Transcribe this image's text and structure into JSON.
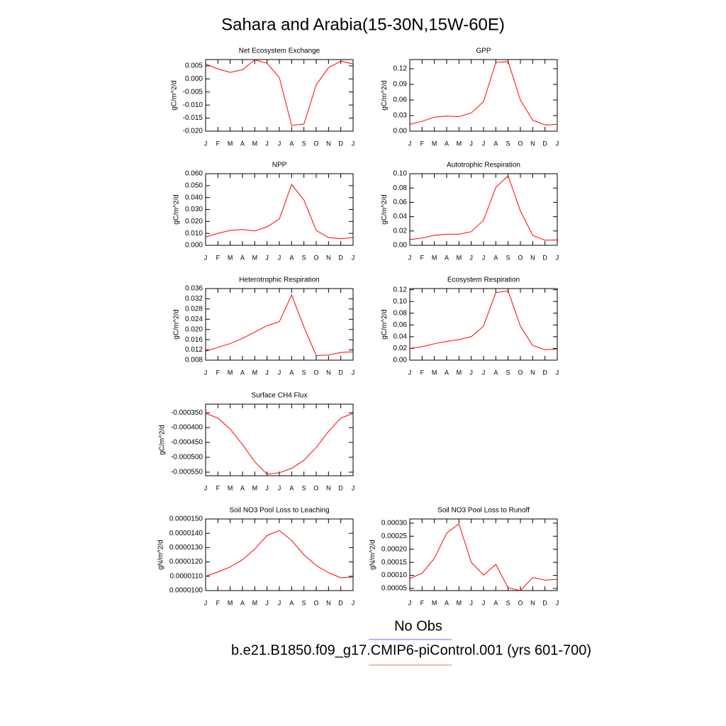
{
  "title": "Sahara and Arabia(15-30N,15W-60E)",
  "legend": [
    {
      "name": "No Obs",
      "color": "#6a6aff"
    },
    {
      "name": "b.e21.B1850.f09_g17.CMIP6-piControl.001 (yrs 601-700)",
      "color": "#ff6a6a"
    }
  ],
  "chart_data": [
    {
      "type": "line",
      "title": "Net Ecosystem Exchange",
      "y_label": "gC/m^2/d",
      "color": "#ff0000",
      "categories": [
        "J",
        "F",
        "M",
        "A",
        "M",
        "J",
        "J",
        "A",
        "S",
        "O",
        "N",
        "D",
        "J"
      ],
      "values": [
        0.0057,
        0.0038,
        0.0025,
        0.0035,
        0.0073,
        0.006,
        0.0005,
        -0.0178,
        -0.0173,
        -0.0023,
        0.0043,
        0.0068,
        0.0057
      ],
      "ylim": [
        -0.02,
        0.0074
      ],
      "yticks": [
        0.005,
        {
          "value": 0,
          "label": "0.000"
        },
        -0.005,
        {
          "value": -0.01,
          "label": "-0.010"
        },
        -0.015,
        {
          "value": -0.02,
          "label": "-0.020"
        }
      ]
    },
    {
      "type": "line",
      "title": "GPP",
      "y_label": "gC/m^2/d",
      "color": "#ff0000",
      "categories": [
        "J",
        "F",
        "M",
        "A",
        "M",
        "J",
        "J",
        "A",
        "S",
        "O",
        "N",
        "D",
        "J"
      ],
      "values": [
        0.013,
        0.019,
        0.027,
        0.029,
        0.028,
        0.035,
        0.057,
        0.132,
        0.134,
        0.06,
        0.021,
        0.012,
        0.013
      ],
      "ylim": [
        0,
        0.1377
      ],
      "yticks": [
        {
          "value": 0,
          "label": "0.00"
        },
        0.03,
        0.06,
        0.09,
        0.12
      ]
    },
    {
      "type": "line",
      "title": "NPP",
      "y_label": "gC/m^2/d",
      "color": "#ff0000",
      "categories": [
        "J",
        "F",
        "M",
        "A",
        "M",
        "J",
        "J",
        "A",
        "S",
        "O",
        "N",
        "D",
        "J"
      ],
      "values": [
        0.007,
        0.01,
        0.0125,
        0.0133,
        0.012,
        0.0155,
        0.022,
        0.051,
        0.038,
        0.0125,
        0.0065,
        0.0055,
        0.0065
      ],
      "ylim": [
        0,
        0.06
      ],
      "yticks": [
        {
          "value": 0,
          "label": "0.000"
        },
        {
          "value": 0.01,
          "label": "0.010"
        },
        {
          "value": 0.02,
          "label": "0.020"
        },
        {
          "value": 0.03,
          "label": "0.030"
        },
        {
          "value": 0.04,
          "label": "0.040"
        },
        {
          "value": 0.05,
          "label": "0.050"
        },
        {
          "value": 0.06,
          "label": "0.060"
        }
      ]
    },
    {
      "type": "line",
      "title": "Autotrophic Respiration",
      "y_label": "gC/m^2/d",
      "color": "#ff0000",
      "categories": [
        "J",
        "F",
        "M",
        "A",
        "M",
        "J",
        "J",
        "A",
        "S",
        "O",
        "N",
        "D",
        "J"
      ],
      "values": [
        0.008,
        0.01,
        0.014,
        0.0155,
        0.0155,
        0.019,
        0.035,
        0.081,
        0.097,
        0.048,
        0.014,
        0.007,
        0.0075
      ],
      "ylim": [
        0,
        0.1
      ],
      "yticks": [
        {
          "value": 0,
          "label": "0.00"
        },
        0.02,
        0.04,
        0.06,
        0.08,
        {
          "value": 0.1,
          "label": "0.10"
        }
      ]
    },
    {
      "type": "line",
      "title": "Heterotrophic Respiration",
      "y_label": "gC/m^2/d",
      "color": "#ff0000",
      "categories": [
        "J",
        "F",
        "M",
        "A",
        "M",
        "J",
        "J",
        "A",
        "S",
        "O",
        "N",
        "D",
        "J"
      ],
      "values": [
        0.0115,
        0.013,
        0.0145,
        0.0165,
        0.019,
        0.0215,
        0.023,
        0.0335,
        0.021,
        0.0098,
        0.01,
        0.011,
        0.0113
      ],
      "ylim": [
        0.008,
        0.036
      ],
      "yticks": [
        0.008,
        0.012,
        0.016,
        {
          "value": 0.02,
          "label": "0.020"
        },
        0.024,
        0.028,
        0.032,
        0.036
      ]
    },
    {
      "type": "line",
      "title": "Ecosystem Respiration",
      "y_label": "gC/m^2/d",
      "color": "#ff0000",
      "categories": [
        "J",
        "F",
        "M",
        "A",
        "M",
        "J",
        "J",
        "A",
        "S",
        "O",
        "N",
        "D",
        "J"
      ],
      "values": [
        0.02,
        0.023,
        0.028,
        0.032,
        0.035,
        0.04,
        0.058,
        0.115,
        0.118,
        0.058,
        0.025,
        0.018,
        0.019
      ],
      "ylim": [
        0,
        0.122
      ],
      "yticks": [
        {
          "value": 0,
          "label": "0.00"
        },
        0.02,
        0.04,
        0.06,
        0.08,
        {
          "value": 0.1,
          "label": "0.10"
        },
        0.12
      ]
    },
    {
      "type": "line",
      "title": "Surface CH4 Flux",
      "y_label": "gC/m^2/d",
      "color": "#ff0000",
      "categories": [
        "J",
        "F",
        "M",
        "A",
        "M",
        "J",
        "J",
        "A",
        "S",
        "O",
        "N",
        "D",
        "J"
      ],
      "values": [
        -0.000352,
        -0.000368,
        -0.000405,
        -0.000457,
        -0.000515,
        -0.000557,
        -0.000552,
        -0.000537,
        -0.00051,
        -0.000467,
        -0.000413,
        -0.000368,
        -0.000352
      ],
      "ylim": [
        -0.000562,
        -0.000321
      ],
      "yticks": [
        {
          "value": -0.00035,
          "label": "-0.000350"
        },
        {
          "value": -0.0004,
          "label": "-0.000400"
        },
        {
          "value": -0.00045,
          "label": "-0.000450"
        },
        {
          "value": -0.0005,
          "label": "-0.000500"
        },
        {
          "value": -0.00055,
          "label": "-0.000550"
        }
      ]
    },
    {
      "type": "line",
      "title": "Soil NO3 Pool Loss to Leaching",
      "y_label": "gN/m^2/d",
      "color": "#ff0000",
      "categories": [
        "J",
        "F",
        "M",
        "A",
        "M",
        "J",
        "J",
        "A",
        "S",
        "O",
        "N",
        "D",
        "J"
      ],
      "values": [
        1.1e-05,
        1.13e-05,
        1.165e-05,
        1.215e-05,
        1.29e-05,
        1.385e-05,
        1.42e-05,
        1.35e-05,
        1.25e-05,
        1.175e-05,
        1.125e-05,
        1.09e-05,
        1.095e-05
      ],
      "ylim": [
        1e-05,
        1.5e-05
      ],
      "yticks": [
        {
          "value": 1e-05,
          "label": "0.0000100"
        },
        {
          "value": 1.1e-05,
          "label": "0.0000110"
        },
        {
          "value": 1.2e-05,
          "label": "0.0000120"
        },
        {
          "value": 1.3e-05,
          "label": "0.0000130"
        },
        {
          "value": 1.4e-05,
          "label": "0.0000140"
        },
        {
          "value": 1.5e-05,
          "label": "0.0000150"
        }
      ]
    },
    {
      "type": "line",
      "title": "Soil NO3 Pool Loss to Runoff",
      "y_label": "gN/m^2/d",
      "color": "#ff0000",
      "categories": [
        "J",
        "F",
        "M",
        "A",
        "M",
        "J",
        "J",
        "A",
        "S",
        "O",
        "N",
        "D",
        "J"
      ],
      "values": [
        8.8e-05,
        0.000108,
        0.000165,
        0.000262,
        0.000297,
        0.00015,
        0.000101,
        0.000142,
        5.2e-05,
        4.2e-05,
        9.2e-05,
        8.2e-05,
        8.5e-05
      ],
      "ylim": [
        4.18e-05,
        0.000316
      ],
      "yticks": [
        5e-05,
        {
          "value": 0.0001,
          "label": "0.00010"
        },
        0.00015,
        {
          "value": 0.0002,
          "label": "0.00020"
        },
        0.00025,
        {
          "value": 0.0003,
          "label": "0.00030"
        }
      ]
    }
  ]
}
